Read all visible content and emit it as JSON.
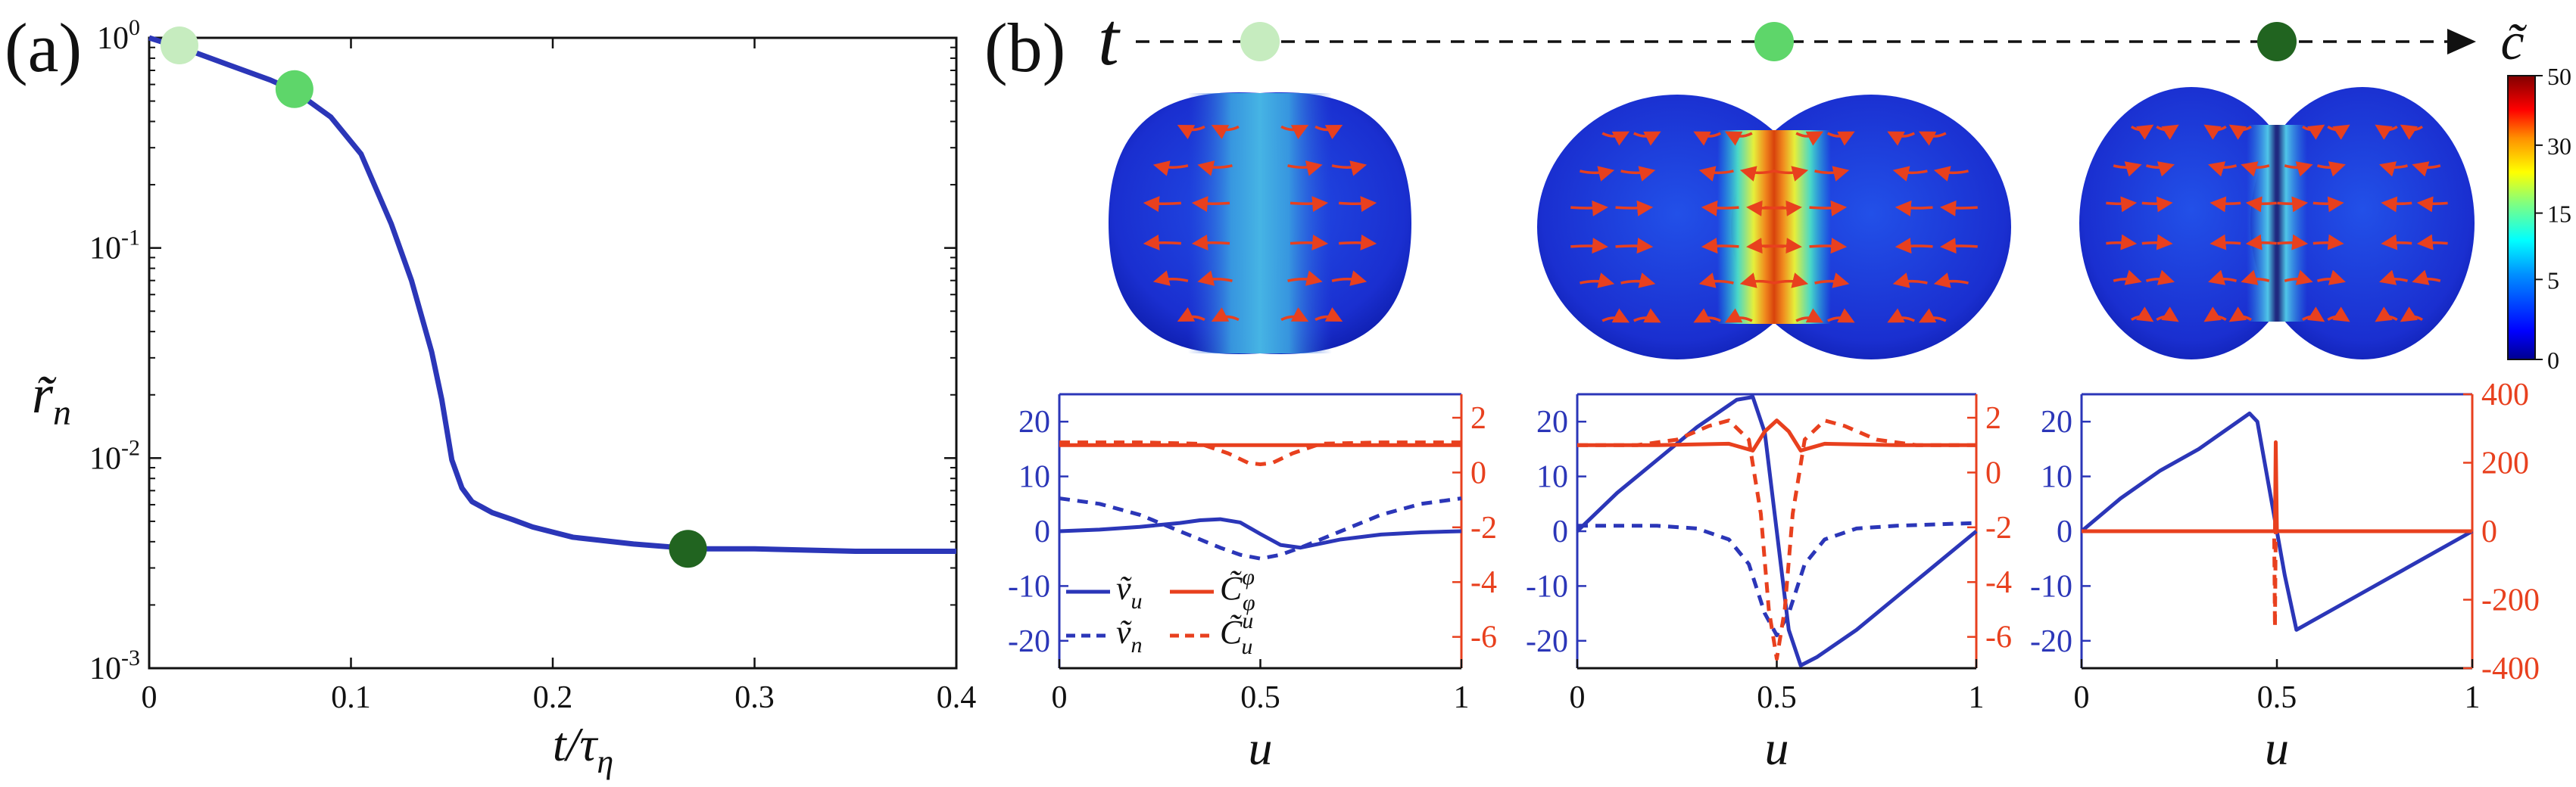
{
  "panel_labels": {
    "a": "(a)",
    "b": "(b)"
  },
  "colors": {
    "blue": "#2b36b8",
    "red": "#e8401e",
    "dot_light": "#c6ecbf",
    "dot_mid": "#5ed66a",
    "dot_dark": "#216420",
    "axis": "#111111"
  },
  "time_arrow": {
    "label": "t",
    "colorbar_label": "c̃"
  },
  "colorbar": {
    "ticks": [
      "50",
      "30",
      "15",
      "5",
      "0"
    ],
    "tick_values": [
      50,
      30,
      15,
      5,
      0
    ]
  },
  "chart_data": [
    {
      "id": "panel-a",
      "type": "line",
      "yscale": "log",
      "xlabel": "t/τ_η",
      "xlabel_main": "t/τ",
      "xlabel_sub": "η",
      "ylabel_main": "r̃",
      "ylabel_sub": "n",
      "xlim": [
        0,
        0.4
      ],
      "ylim": [
        0.001,
        1
      ],
      "xticks": [
        0,
        0.1,
        0.2,
        0.3,
        0.4
      ],
      "xtick_labels": [
        "0",
        "0.1",
        "0.2",
        "0.3",
        "0.4"
      ],
      "yticks": [
        1,
        0.1,
        0.01,
        0.001
      ],
      "ytick_labels": [
        {
          "base": "10",
          "exp": "0"
        },
        {
          "base": "10",
          "exp": "-1"
        },
        {
          "base": "10",
          "exp": "-2"
        },
        {
          "base": "10",
          "exp": "-3"
        }
      ],
      "series": [
        {
          "name": "r_n",
          "x": [
            0.0,
            0.02,
            0.04,
            0.06,
            0.072,
            0.09,
            0.105,
            0.12,
            0.13,
            0.14,
            0.145,
            0.15,
            0.155,
            0.16,
            0.17,
            0.18,
            0.19,
            0.21,
            0.24,
            0.27,
            0.3,
            0.35,
            0.4
          ],
          "y": [
            1.0,
            0.87,
            0.74,
            0.63,
            0.56,
            0.42,
            0.28,
            0.13,
            0.07,
            0.032,
            0.019,
            0.0098,
            0.0072,
            0.0062,
            0.0055,
            0.0051,
            0.0047,
            0.0042,
            0.0039,
            0.0037,
            0.0037,
            0.0036,
            0.0036
          ]
        }
      ],
      "markers": [
        {
          "x": 0.015,
          "y": 0.92,
          "color": "#c6ecbf"
        },
        {
          "x": 0.072,
          "y": 0.57,
          "color": "#5ed66a"
        },
        {
          "x": 0.267,
          "y": 0.0037,
          "color": "#216420"
        }
      ]
    },
    {
      "id": "panel-b1",
      "type": "line",
      "xlabel": "u",
      "xlim": [
        0,
        1
      ],
      "ylim": [
        -25,
        25
      ],
      "y2lim": [
        -7.143,
        2.857
      ],
      "xticks": [
        0,
        0.5,
        1
      ],
      "xtick_labels": [
        "0",
        "0.5",
        "1"
      ],
      "yticks": [
        20,
        10,
        0,
        -10,
        -20
      ],
      "ytick_labels": [
        "20",
        "10",
        "0",
        "-10",
        "-20"
      ],
      "y2ticks": [
        2,
        0,
        -2,
        -4,
        -6
      ],
      "y2tick_labels": [
        "2",
        "0",
        "-2",
        "-4",
        "-6"
      ],
      "legend": [
        "ṽ_u",
        "ṽ_n",
        "C̃^φ_φ",
        "C̃^u_u"
      ],
      "series": [
        {
          "name": "v_u",
          "axis": "left",
          "style": "solid",
          "color": "#2b36b8",
          "x": [
            0,
            0.1,
            0.2,
            0.3,
            0.35,
            0.4,
            0.45,
            0.5,
            0.55,
            0.6,
            0.7,
            0.8,
            0.9,
            1.0
          ],
          "y": [
            0,
            0.3,
            0.8,
            1.5,
            2.0,
            2.2,
            1.6,
            -0.5,
            -2.5,
            -3.0,
            -1.5,
            -0.6,
            -0.2,
            0
          ]
        },
        {
          "name": "v_n",
          "axis": "left",
          "style": "dashed",
          "color": "#2b36b8",
          "x": [
            0,
            0.1,
            0.2,
            0.3,
            0.4,
            0.45,
            0.5,
            0.55,
            0.6,
            0.7,
            0.8,
            0.9,
            1.0
          ],
          "y": [
            6.0,
            5.0,
            3.0,
            0,
            -3.0,
            -4.3,
            -5.0,
            -4.3,
            -3.0,
            0,
            3.0,
            5.0,
            6.0
          ]
        },
        {
          "name": "C_phi_phi",
          "axis": "right",
          "style": "solid",
          "color": "#e8401e",
          "x": [
            0,
            0.5,
            1.0
          ],
          "y": [
            1.0,
            1.0,
            1.0
          ]
        },
        {
          "name": "C_u_u",
          "axis": "right",
          "style": "dashed",
          "color": "#e8401e",
          "x": [
            0,
            0.2,
            0.35,
            0.42,
            0.47,
            0.5,
            0.53,
            0.58,
            0.65,
            0.8,
            1.0
          ],
          "y": [
            1.1,
            1.1,
            1.05,
            0.7,
            0.35,
            0.3,
            0.35,
            0.7,
            1.05,
            1.1,
            1.1
          ]
        }
      ]
    },
    {
      "id": "panel-b2",
      "type": "line",
      "xlabel": "u",
      "xlim": [
        0,
        1
      ],
      "ylim": [
        -25,
        25
      ],
      "y2lim": [
        -7.143,
        2.857
      ],
      "xticks": [
        0,
        0.5,
        1
      ],
      "xtick_labels": [
        "0",
        "0.5",
        "1"
      ],
      "yticks": [
        20,
        10,
        0,
        -10,
        -20
      ],
      "ytick_labels": [
        "20",
        "10",
        "0",
        "-10",
        "-20"
      ],
      "y2ticks": [
        2,
        0,
        -2,
        -4,
        -6
      ],
      "y2tick_labels": [
        "2",
        "0",
        "-2",
        "-4",
        "-6"
      ],
      "series": [
        {
          "name": "v_u",
          "axis": "left",
          "style": "solid",
          "color": "#2b36b8",
          "x": [
            0,
            0.1,
            0.2,
            0.3,
            0.4,
            0.44,
            0.47,
            0.5,
            0.53,
            0.56,
            0.6,
            0.7,
            0.8,
            0.9,
            1.0
          ],
          "y": [
            0,
            7,
            13,
            19,
            24,
            24.5,
            18,
            0,
            -18,
            -24.5,
            -23,
            -18,
            -12,
            -6,
            0
          ]
        },
        {
          "name": "v_n",
          "axis": "left",
          "style": "dashed",
          "color": "#2b36b8",
          "x": [
            0,
            0.2,
            0.3,
            0.38,
            0.43,
            0.47,
            0.5,
            0.53,
            0.57,
            0.62,
            0.7,
            0.8,
            1.0
          ],
          "y": [
            1,
            1,
            0.5,
            -1.5,
            -6,
            -15,
            -19,
            -15,
            -6,
            -1.5,
            0.5,
            1,
            1.5
          ]
        },
        {
          "name": "C_phi_phi",
          "axis": "right",
          "style": "solid",
          "color": "#e8401e",
          "x": [
            0,
            0.2,
            0.38,
            0.44,
            0.47,
            0.5,
            0.53,
            0.56,
            0.62,
            0.8,
            1.0
          ],
          "y": [
            1.0,
            1.0,
            1.05,
            0.8,
            1.5,
            1.9,
            1.5,
            0.8,
            1.05,
            1.0,
            1.0
          ]
        },
        {
          "name": "C_u_u",
          "axis": "right",
          "style": "dashed",
          "color": "#e8401e",
          "x": [
            0,
            0.15,
            0.25,
            0.33,
            0.38,
            0.43,
            0.46,
            0.48,
            0.5,
            0.52,
            0.54,
            0.57,
            0.62,
            0.67,
            0.75,
            0.85,
            1.0
          ],
          "y": [
            1.0,
            1.0,
            1.2,
            1.7,
            1.9,
            1.2,
            -1.5,
            -5.0,
            -6.8,
            -5.0,
            -1.5,
            1.2,
            1.9,
            1.7,
            1.2,
            1.0,
            1.0
          ]
        }
      ]
    },
    {
      "id": "panel-b3",
      "type": "line",
      "xlabel": "u",
      "xlim": [
        0,
        1
      ],
      "ylim": [
        -25,
        25
      ],
      "y2lim": [
        -400,
        400
      ],
      "xticks": [
        0,
        0.5,
        1
      ],
      "xtick_labels": [
        "0",
        "0.5",
        "1"
      ],
      "yticks": [
        20,
        10,
        0,
        -10,
        -20
      ],
      "ytick_labels": [
        "20",
        "10",
        "0",
        "-10",
        "-20"
      ],
      "y2ticks": [
        400,
        200,
        0,
        -200,
        -400
      ],
      "y2tick_labels": [
        "400",
        "200",
        "0",
        "-200",
        "-400"
      ],
      "series": [
        {
          "name": "v_u",
          "axis": "left",
          "style": "solid",
          "color": "#2b36b8",
          "x": [
            0,
            0.1,
            0.2,
            0.3,
            0.38,
            0.43,
            0.45,
            0.48,
            0.5,
            0.52,
            0.55,
            0.6,
            0.7,
            0.8,
            0.9,
            1.0
          ],
          "y": [
            0,
            6,
            11,
            15,
            19,
            21.5,
            20,
            8,
            0,
            -8,
            -18,
            -16,
            -12,
            -8,
            -4,
            0
          ]
        },
        {
          "name": "v_n",
          "axis": "left",
          "style": "dashed",
          "color": "#2b36b8",
          "x": [
            0,
            1.0
          ],
          "y": [
            0,
            0
          ]
        },
        {
          "name": "C_phi_phi",
          "axis": "right",
          "style": "solid",
          "color": "#e8401e",
          "x": [
            0,
            0.495,
            0.497,
            0.5,
            0.503,
            1.0
          ],
          "y": [
            0,
            0,
            260,
            0,
            0,
            0
          ]
        },
        {
          "name": "C_u_u",
          "axis": "right",
          "style": "dashed",
          "color": "#e8401e",
          "x": [
            0,
            0.493,
            0.495,
            0.497,
            1.0
          ],
          "y": [
            0,
            0,
            -280,
            0,
            0
          ]
        }
      ]
    }
  ]
}
